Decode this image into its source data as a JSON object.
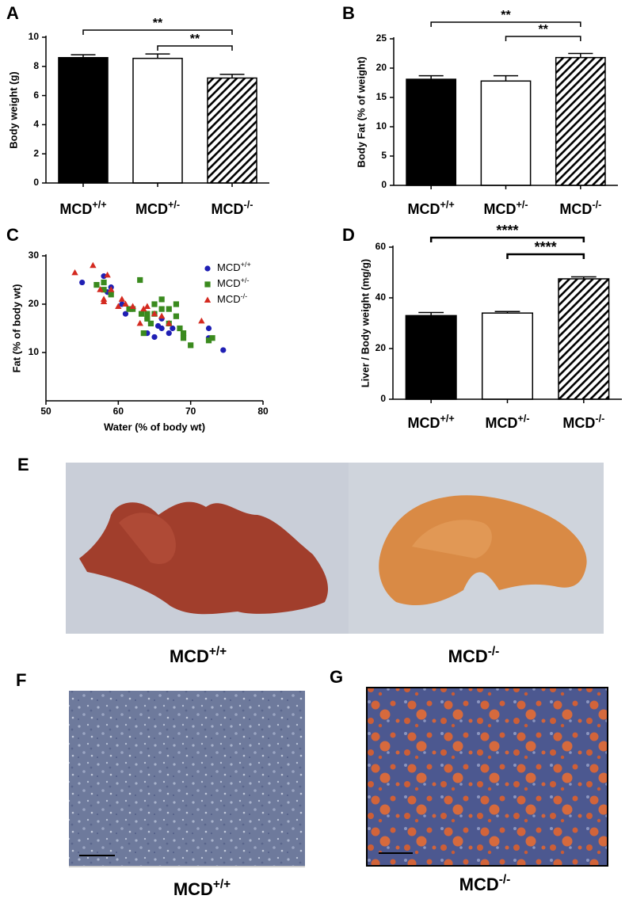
{
  "chart_data": [
    {
      "type": "bar",
      "panel_label": "A",
      "ylabel": "Body weight (g)",
      "categories": [
        "MCD+/+",
        "MCD+/-",
        "MCD-/-"
      ],
      "values": [
        8.6,
        8.55,
        7.2
      ],
      "errors": [
        0.2,
        0.3,
        0.25
      ],
      "fills": [
        "solid",
        "empty",
        "hatched"
      ],
      "color": "#000000",
      "ylim": [
        0,
        10
      ],
      "yticks": [
        0,
        2,
        4,
        6,
        8,
        10
      ],
      "annotations": [
        {
          "text": "**",
          "from": "MCD+/+",
          "to": "MCD-/-"
        },
        {
          "text": "**",
          "from": "MCD+/-",
          "to": "MCD-/-"
        }
      ]
    },
    {
      "type": "bar",
      "panel_label": "B",
      "ylabel": "Body Fat (% of weight)",
      "categories": [
        "MCD+/+",
        "MCD+/-",
        "MCD-/-"
      ],
      "values": [
        18.1,
        17.8,
        21.8
      ],
      "errors": [
        0.6,
        0.9,
        0.7
      ],
      "fills": [
        "solid",
        "empty",
        "hatched"
      ],
      "color": "#000000",
      "ylim": [
        0,
        25
      ],
      "yticks": [
        0,
        5,
        10,
        15,
        20,
        25
      ],
      "annotations": [
        {
          "text": "**",
          "from": "MCD+/+",
          "to": "MCD-/-"
        },
        {
          "text": "**",
          "from": "MCD+/-",
          "to": "MCD-/-"
        }
      ]
    },
    {
      "type": "scatter",
      "panel_label": "C",
      "xlabel": "Water (% of body wt)",
      "ylabel": "Fat (% of body wt)",
      "xlim": [
        50,
        80
      ],
      "xticks": [
        50,
        60,
        70,
        80
      ],
      "ylim": [
        0,
        30
      ],
      "yticks": [
        10,
        20,
        30
      ],
      "legend": "upper right",
      "series": [
        {
          "name": "MCD+/+",
          "color": "#1f1fb4",
          "marker": "circle",
          "x": [
            55,
            58,
            58.5,
            59,
            60.5,
            61,
            62,
            64,
            64,
            65,
            65.5,
            66,
            66,
            67,
            67.5,
            72.5,
            72.5,
            74.5
          ],
          "values": [
            24.5,
            25.8,
            22.5,
            23.5,
            20,
            18,
            19,
            17,
            14,
            13.2,
            15.5,
            17,
            15,
            14,
            15,
            15,
            13,
            10.5
          ]
        },
        {
          "name": "MCD+/-",
          "color": "#3a8a1e",
          "marker": "square",
          "x": [
            57,
            58,
            58,
            59,
            61.5,
            62,
            63,
            63.2,
            63.5,
            64,
            64,
            64.5,
            65,
            65,
            66,
            66,
            67,
            67,
            68,
            68,
            68.5,
            69,
            69,
            70,
            72.5,
            73
          ],
          "values": [
            24,
            24.5,
            23,
            22,
            19,
            19,
            25,
            18,
            14,
            18,
            17,
            16,
            20,
            18,
            21,
            19,
            19,
            16,
            17.5,
            20,
            15,
            14,
            13,
            11.5,
            12.5,
            13
          ]
        },
        {
          "name": "MCD-/-",
          "color": "#d42a20",
          "marker": "triangle",
          "x": [
            54,
            56.5,
            57.5,
            58,
            58,
            58.5,
            59,
            60,
            60.5,
            61,
            62,
            63,
            63.5,
            64,
            65,
            66,
            67,
            71.5
          ],
          "values": [
            26.5,
            28,
            23,
            21,
            20.5,
            26,
            23,
            19.5,
            21,
            20,
            19.5,
            16,
            19,
            19.5,
            18,
            17.5,
            16,
            16.5
          ]
        }
      ]
    },
    {
      "type": "bar",
      "panel_label": "D",
      "ylabel": "Liver / Body weight (mg/g)",
      "categories": [
        "MCD+/+",
        "MCD+/-",
        "MCD-/-"
      ],
      "values": [
        33,
        34,
        47.5
      ],
      "errors": [
        1.2,
        0.6,
        0.8
      ],
      "fills": [
        "solid",
        "empty",
        "hatched"
      ],
      "color": "#000000",
      "ylim": [
        0,
        60
      ],
      "yticks": [
        0,
        20,
        40,
        60
      ],
      "annotations": [
        {
          "text": "****",
          "from": "MCD+/+",
          "to": "MCD-/-"
        },
        {
          "text": "****",
          "from": "MCD+/-",
          "to": "MCD-/-"
        }
      ]
    }
  ],
  "figure": {
    "panels": [
      {
        "label": "E",
        "captions": [
          "MCD+/+",
          "MCD-/-"
        ]
      },
      {
        "label": "F",
        "caption": "MCD+/+"
      },
      {
        "label": "G",
        "caption": "MCD-/-"
      }
    ]
  }
}
